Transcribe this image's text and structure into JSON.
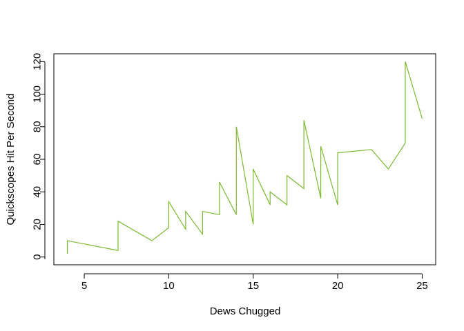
{
  "chart_data": {
    "type": "line",
    "xlabel": "Dews Chugged",
    "ylabel": "Quickscopes Hit Per Second",
    "xlim": [
      3.2,
      25.8
    ],
    "ylim": [
      -4.8,
      124.8
    ],
    "x_ticks": [
      5,
      10,
      15,
      20,
      25
    ],
    "y_ticks": [
      0,
      20,
      40,
      60,
      80,
      100,
      120
    ],
    "grid": false,
    "legend": "none",
    "line_color": "#7cb82f",
    "series": [
      {
        "x": [
          4,
          4,
          7,
          7,
          9,
          10,
          10,
          11,
          11,
          12,
          12,
          13,
          13,
          14,
          14,
          15,
          15,
          16,
          16,
          17,
          17,
          18,
          18,
          19,
          19,
          20,
          20,
          22,
          23,
          24,
          24,
          25
        ],
        "y": [
          2,
          10,
          4,
          22,
          10,
          18,
          34,
          17,
          28,
          14,
          28,
          26,
          46,
          26,
          80,
          20,
          54,
          32,
          40,
          32,
          50,
          42,
          84,
          36,
          68,
          32,
          64,
          66,
          54,
          70,
          120,
          85
        ]
      }
    ]
  }
}
